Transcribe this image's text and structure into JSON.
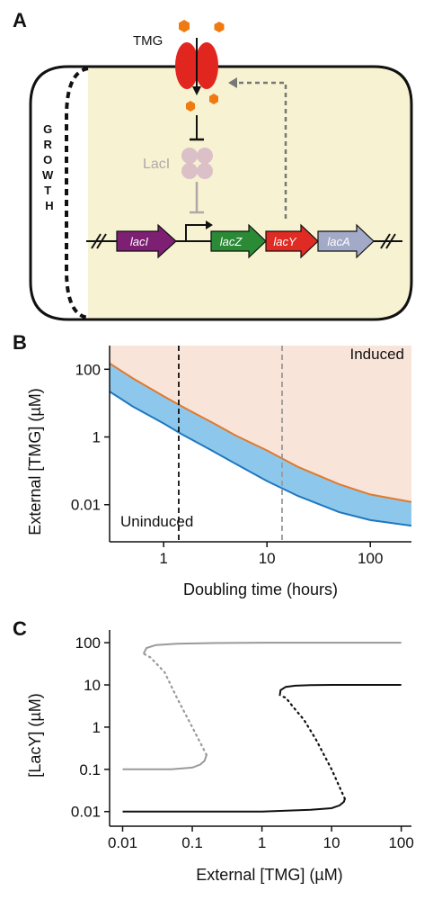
{
  "panel_a": {
    "label": "A",
    "tmg_label": "TMG",
    "laci_protein_label": "LacI",
    "growth_label": "G\nR\nO\nW\nT\nH",
    "genes": [
      "lacI",
      "lacZ",
      "lacY",
      "lacA"
    ],
    "colors": {
      "cell_fill": "#f7f3d2",
      "lacI": "#7d1f73",
      "lacZ": "#2a8a36",
      "lacY": "#e02a24",
      "lacA": "#a3aac8",
      "transporter": "#e0261e",
      "tmg": "#ef7a11",
      "laci_protein": "#dcc0c7"
    }
  },
  "panel_b": {
    "label": "B"
  },
  "panel_c": {
    "label": "C"
  },
  "chart_data": [
    {
      "type": "area",
      "panel": "B",
      "xlabel": "Doubling time (hours)",
      "ylabel": "External [TMG] (µM)",
      "xscale": "log",
      "yscale": "log",
      "xlim": [
        0.3,
        250
      ],
      "ylim": [
        0.0008,
        500
      ],
      "xticks": [
        1,
        10,
        100
      ],
      "xticklabels": [
        "1",
        "10",
        "100"
      ],
      "yticks": [
        0.01,
        1,
        100
      ],
      "yticklabels": [
        "0.01",
        "1",
        "100"
      ],
      "region_labels": {
        "induced": "Induced",
        "uninduced": "Uninduced"
      },
      "vlines": [
        {
          "x": 1.4,
          "color": "#111111",
          "style": "dashed"
        },
        {
          "x": 14,
          "color": "#999999",
          "style": "dashed"
        }
      ],
      "series": [
        {
          "color": "#e07a2e",
          "x": [
            0.3,
            0.5,
            1,
            1.5,
            2,
            3,
            5,
            10,
            20,
            50,
            100,
            250
          ],
          "y": [
            150,
            55,
            16,
            8,
            5,
            2.6,
            1.1,
            0.4,
            0.13,
            0.04,
            0.02,
            0.012
          ]
        },
        {
          "color": "#1f77c0",
          "x": [
            0.3,
            0.5,
            1,
            1.5,
            2,
            3,
            5,
            10,
            20,
            50,
            100,
            250
          ],
          "y": [
            22,
            8,
            2.5,
            1.2,
            0.75,
            0.38,
            0.16,
            0.05,
            0.018,
            0.006,
            0.0035,
            0.0024
          ]
        }
      ],
      "fills": {
        "induced": "#f9e4d9",
        "bistable": "#8dc8ec"
      }
    },
    {
      "type": "line",
      "panel": "C",
      "xlabel": "External [TMG] (µM)",
      "ylabel": "[LacY] (µM)",
      "xscale": "log",
      "yscale": "log",
      "xlim": [
        0.0065,
        140
      ],
      "ylim": [
        0.0045,
        200
      ],
      "xticks": [
        0.01,
        0.1,
        1,
        10,
        100
      ],
      "xticklabels": [
        "0.01",
        "0.1",
        "1",
        "10",
        "100"
      ],
      "yticks": [
        0.01,
        0.1,
        1,
        10,
        100
      ],
      "yticklabels": [
        "0.01",
        "0.1",
        "1",
        "10",
        "100"
      ],
      "series": [
        {
          "color": "#9a9a9a",
          "stable_low": {
            "x": [
              0.01,
              0.05,
              0.1,
              0.13,
              0.15,
              0.16
            ],
            "y": [
              0.1,
              0.1,
              0.11,
              0.13,
              0.16,
              0.22
            ]
          },
          "unstable": {
            "x": [
              0.16,
              0.1,
              0.06,
              0.04,
              0.025,
              0.02
            ],
            "y": [
              0.22,
              1,
              5,
              20,
              45,
              55
            ]
          },
          "stable_high": {
            "x": [
              0.02,
              0.022,
              0.03,
              0.06,
              0.2,
              1,
              100
            ],
            "y": [
              55,
              75,
              88,
              95,
              98,
              100,
              100
            ]
          }
        },
        {
          "color": "#111111",
          "stable_low": {
            "x": [
              0.01,
              0.1,
              1,
              5,
              10,
              13,
              15,
              15.5
            ],
            "y": [
              0.01,
              0.01,
              0.01,
              0.011,
              0.012,
              0.014,
              0.017,
              0.02
            ]
          },
          "unstable": {
            "x": [
              15.5,
              10,
              6,
              4,
              2.8,
              2.2,
              1.8
            ],
            "y": [
              0.02,
              0.1,
              0.5,
              1.5,
              3,
              5,
              5.5
            ]
          },
          "stable_high": {
            "x": [
              1.8,
              1.85,
              2.2,
              3,
              5,
              10,
              100
            ],
            "y": [
              5.5,
              7.5,
              9,
              9.6,
              9.9,
              10,
              10
            ]
          }
        }
      ]
    }
  ]
}
